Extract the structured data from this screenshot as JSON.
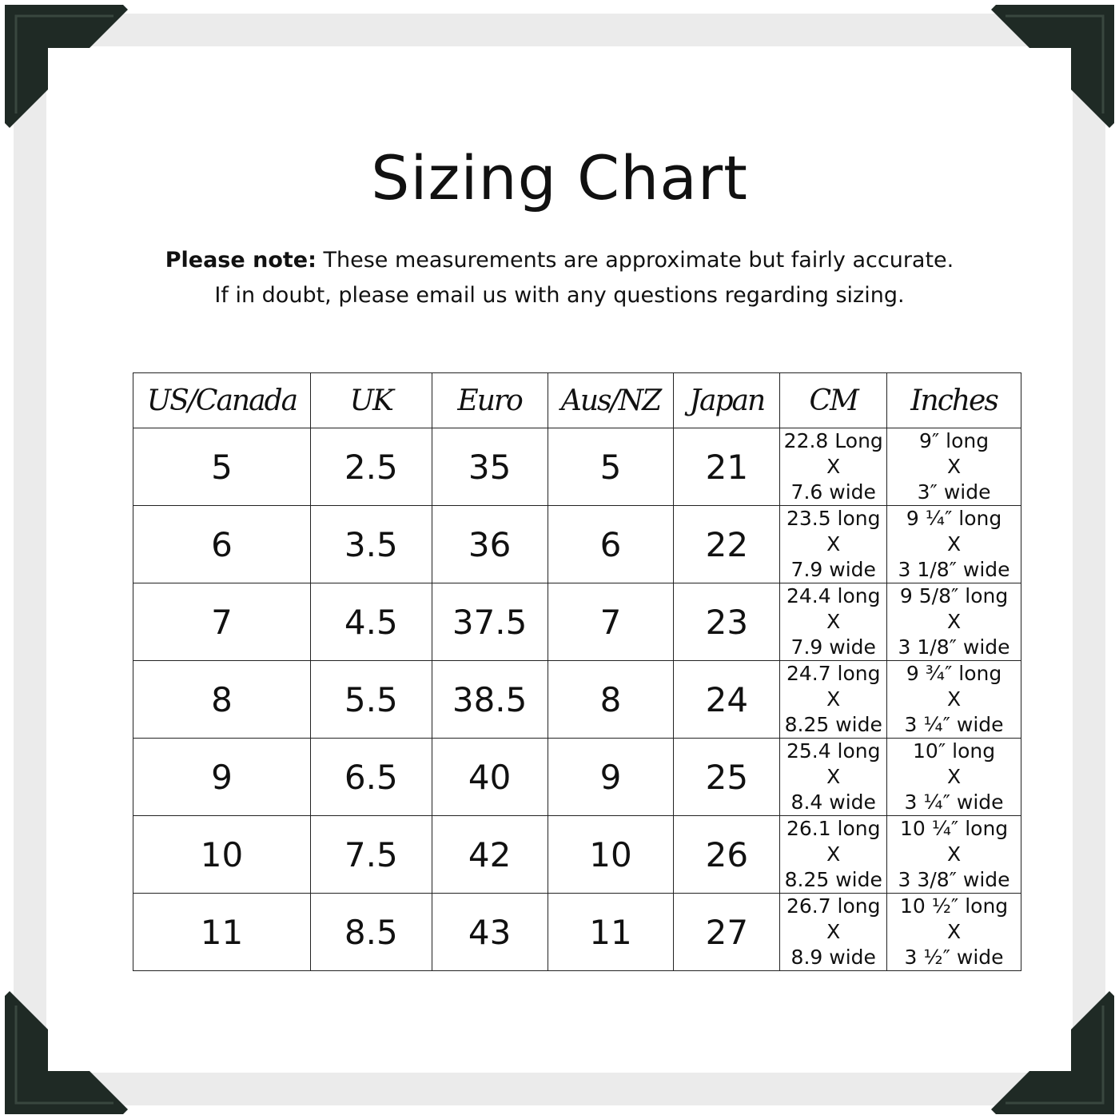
{
  "title": "Sizing Chart",
  "note": {
    "label": "Please note:",
    "text": " These measurements are approximate but fairly accurate. If in doubt, please email us with any questions regarding sizing."
  },
  "table": {
    "headers": [
      "US/Canada",
      "UK",
      "Euro",
      "Aus/NZ",
      "Japan",
      "CM",
      "Inches"
    ],
    "rows": [
      [
        "5",
        "2.5",
        "35",
        "5",
        "21",
        [
          "22.8 Long",
          "X",
          "7.6 wide"
        ],
        [
          "9″ long",
          "X",
          "3″ wide"
        ]
      ],
      [
        "6",
        "3.5",
        "36",
        "6",
        "22",
        [
          "23.5 long",
          "X",
          "7.9 wide"
        ],
        [
          "9 ¼″ long",
          "X",
          "3 1/8″ wide"
        ]
      ],
      [
        "7",
        "4.5",
        "37.5",
        "7",
        "23",
        [
          "24.4 long",
          "X",
          "7.9 wide"
        ],
        [
          "9 5/8″ long",
          "X",
          "3 1/8″ wide"
        ]
      ],
      [
        "8",
        "5.5",
        "38.5",
        "8",
        "24",
        [
          "24.7 long",
          "X",
          "8.25 wide"
        ],
        [
          "9 ¾″ long",
          "X",
          "3 ¼″ wide"
        ]
      ],
      [
        "9",
        "6.5",
        "40",
        "9",
        "25",
        [
          "25.4 long",
          "X",
          "8.4 wide"
        ],
        [
          "10″ long",
          "X",
          "3 ¼″ wide"
        ]
      ],
      [
        "10",
        "7.5",
        "42",
        "10",
        "26",
        [
          "26.1 long",
          "X",
          "8.25 wide"
        ],
        [
          "10 ¼″ long",
          "X",
          "3 3/8″ wide"
        ]
      ],
      [
        "11",
        "8.5",
        "43",
        "11",
        "27",
        [
          "26.7 long",
          "X",
          "8.9 wide"
        ],
        [
          "10 ½″ long",
          "X",
          "3 ½″ wide"
        ]
      ]
    ]
  },
  "colors": {
    "corner": "#1f2a25",
    "frame": "#ebebeb"
  }
}
